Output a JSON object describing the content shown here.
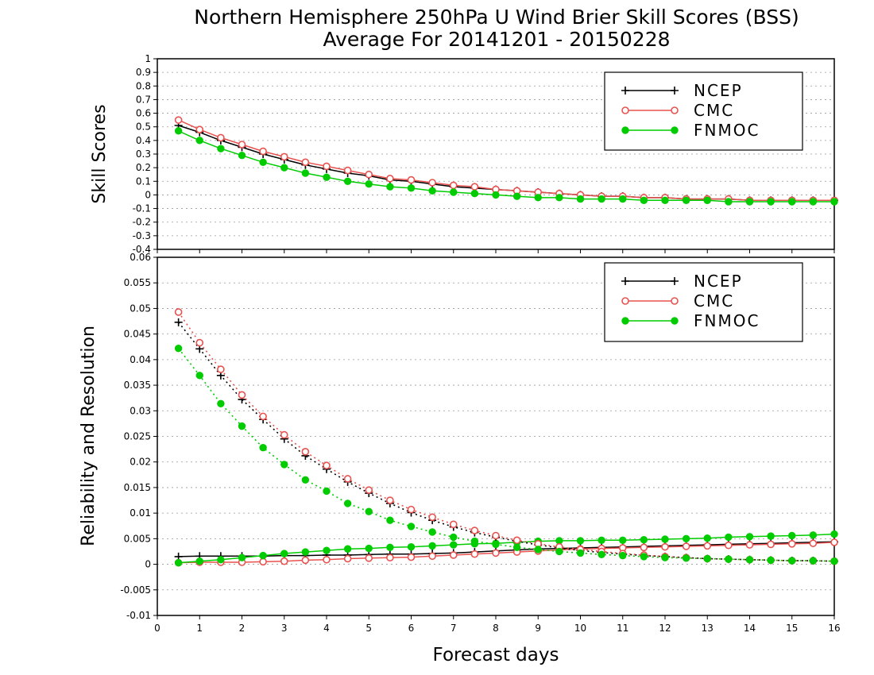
{
  "title_line1": "Northern Hemisphere 250hPa U Wind Brier Skill Scores (BSS)",
  "title_line2": "Average For 20141201 - 20150228",
  "xlabel": "Forecast days",
  "colors": {
    "NCEP": "#000000",
    "CMC": "#e8524f",
    "FNMOC": "#00cc00"
  },
  "legend": [
    "NCEP",
    "CMC",
    "FNMOC"
  ],
  "chart_data": [
    {
      "type": "line",
      "ylabel": "Skill Scores",
      "xlim": [
        0,
        16
      ],
      "ylim": [
        -0.4,
        1
      ],
      "x_ticks": [
        0,
        1,
        2,
        3,
        4,
        5,
        6,
        7,
        8,
        9,
        10,
        11,
        12,
        13,
        14,
        15,
        16
      ],
      "y_ticks": [
        -0.4,
        -0.3,
        -0.2,
        -0.1,
        0,
        0.1,
        0.2,
        0.3,
        0.4,
        0.5,
        0.6,
        0.7,
        0.8,
        0.9,
        1
      ],
      "y_tick_labels": [
        "-0.4",
        "-0.3",
        "-0.2",
        "-0.1",
        "0",
        "0.1",
        "0.2",
        "0.3",
        "0.4",
        "0.5",
        "0.6",
        "0.7",
        "0.8",
        "0.9",
        "1"
      ],
      "grid": "horizontal dotted",
      "legend_position": "top-right",
      "x": [
        0.5,
        1,
        1.5,
        2,
        2.5,
        3,
        3.5,
        4,
        4.5,
        5,
        5.5,
        6,
        6.5,
        7,
        7.5,
        8,
        8.5,
        9,
        9.5,
        10,
        10.5,
        11,
        11.5,
        12,
        12.5,
        13,
        13.5,
        14,
        14.5,
        15,
        15.5,
        16
      ],
      "series": [
        {
          "name": "NCEP",
          "style": "solid",
          "marker": "plus",
          "values": [
            0.51,
            0.46,
            0.4,
            0.35,
            0.3,
            0.26,
            0.22,
            0.19,
            0.16,
            0.14,
            0.11,
            0.1,
            0.08,
            0.06,
            0.05,
            0.04,
            0.03,
            0.02,
            0.01,
            0.0,
            -0.01,
            -0.01,
            -0.02,
            -0.02,
            -0.03,
            -0.03,
            -0.03,
            -0.04,
            -0.04,
            -0.04,
            -0.04,
            -0.04
          ]
        },
        {
          "name": "CMC",
          "style": "solid",
          "marker": "open-circle",
          "values": [
            0.55,
            0.48,
            0.42,
            0.37,
            0.32,
            0.28,
            0.24,
            0.21,
            0.18,
            0.15,
            0.12,
            0.11,
            0.09,
            0.07,
            0.06,
            0.04,
            0.03,
            0.02,
            0.01,
            0.0,
            -0.01,
            -0.01,
            -0.02,
            -0.02,
            -0.03,
            -0.03,
            -0.03,
            -0.04,
            -0.04,
            -0.04,
            -0.04,
            -0.04
          ]
        },
        {
          "name": "FNMOC",
          "style": "solid",
          "marker": "filled-circle",
          "values": [
            0.47,
            0.4,
            0.34,
            0.29,
            0.24,
            0.2,
            0.16,
            0.13,
            0.1,
            0.08,
            0.06,
            0.05,
            0.03,
            0.02,
            0.01,
            0.0,
            -0.01,
            -0.02,
            -0.02,
            -0.03,
            -0.03,
            -0.03,
            -0.04,
            -0.04,
            -0.04,
            -0.04,
            -0.05,
            -0.05,
            -0.05,
            -0.05,
            -0.05,
            -0.05
          ]
        }
      ]
    },
    {
      "type": "line",
      "ylabel": "Reliability and Resolution",
      "xlim": [
        0,
        16
      ],
      "ylim": [
        -0.01,
        0.06
      ],
      "x_ticks": [
        0,
        1,
        2,
        3,
        4,
        5,
        6,
        7,
        8,
        9,
        10,
        11,
        12,
        13,
        14,
        15,
        16
      ],
      "y_ticks": [
        -0.01,
        -0.005,
        0,
        0.005,
        0.01,
        0.015,
        0.02,
        0.025,
        0.03,
        0.035,
        0.04,
        0.045,
        0.05,
        0.055,
        0.06
      ],
      "y_tick_labels": [
        "-0.01",
        "-0.005",
        "0",
        "0.005",
        "0.01",
        "0.015",
        "0.02",
        "0.025",
        "0.03",
        "0.035",
        "0.04",
        "0.045",
        "0.05",
        "0.055",
        "0.06"
      ],
      "grid": "horizontal dotted",
      "legend_position": "top-right",
      "x": [
        0.5,
        1,
        1.5,
        2,
        2.5,
        3,
        3.5,
        4,
        4.5,
        5,
        5.5,
        6,
        6.5,
        7,
        7.5,
        8,
        8.5,
        9,
        9.5,
        10,
        10.5,
        11,
        11.5,
        12,
        12.5,
        13,
        13.5,
        14,
        14.5,
        15,
        15.5,
        16
      ],
      "series": [
        {
          "name": "NCEP",
          "component": "reliability",
          "style": "solid",
          "marker": "plus",
          "values": [
            0.0015,
            0.0016,
            0.0016,
            0.0016,
            0.0016,
            0.0017,
            0.0017,
            0.0018,
            0.0018,
            0.0019,
            0.002,
            0.002,
            0.0021,
            0.0022,
            0.0024,
            0.0026,
            0.0028,
            0.003,
            0.0031,
            0.0032,
            0.0033,
            0.0034,
            0.0035,
            0.0036,
            0.0037,
            0.0038,
            0.0039,
            0.004,
            0.0041,
            0.0042,
            0.0043,
            0.0044
          ]
        },
        {
          "name": "CMC",
          "component": "reliability",
          "style": "solid",
          "marker": "open-circle",
          "values": [
            0.0003,
            0.0004,
            0.0004,
            0.0004,
            0.0005,
            0.0006,
            0.0008,
            0.0009,
            0.0011,
            0.0012,
            0.0013,
            0.0014,
            0.0016,
            0.0018,
            0.002,
            0.0022,
            0.0024,
            0.0026,
            0.0028,
            0.003,
            0.0031,
            0.0032,
            0.0033,
            0.0034,
            0.0035,
            0.0036,
            0.0037,
            0.0038,
            0.0039,
            0.004,
            0.0041,
            0.0043
          ]
        },
        {
          "name": "FNMOC",
          "component": "reliability",
          "style": "solid",
          "marker": "filled-circle",
          "values": [
            0.0003,
            0.0006,
            0.0009,
            0.0013,
            0.0017,
            0.0021,
            0.0024,
            0.0027,
            0.003,
            0.0031,
            0.0033,
            0.0034,
            0.0036,
            0.0038,
            0.004,
            0.0041,
            0.0043,
            0.0045,
            0.0046,
            0.0046,
            0.0047,
            0.0047,
            0.0048,
            0.0049,
            0.005,
            0.0051,
            0.0053,
            0.0054,
            0.0055,
            0.0056,
            0.0057,
            0.0059
          ]
        },
        {
          "name": "NCEP",
          "component": "resolution",
          "style": "dotted",
          "marker": "plus",
          "values": [
            0.0473,
            0.0421,
            0.0369,
            0.0322,
            0.0283,
            0.0245,
            0.0212,
            0.0186,
            0.0161,
            0.0139,
            0.0119,
            0.0101,
            0.0086,
            0.0073,
            0.0062,
            0.0053,
            0.0045,
            0.0038,
            0.0032,
            0.0027,
            0.0023,
            0.002,
            0.0017,
            0.0015,
            0.0013,
            0.0011,
            0.001,
            0.0009,
            0.0008,
            0.0007,
            0.0007,
            0.0006
          ]
        },
        {
          "name": "CMC",
          "component": "resolution",
          "style": "dotted",
          "marker": "open-circle",
          "values": [
            0.0493,
            0.0433,
            0.0381,
            0.0331,
            0.0289,
            0.0253,
            0.022,
            0.0193,
            0.0167,
            0.0145,
            0.0125,
            0.0107,
            0.0092,
            0.0078,
            0.0066,
            0.0056,
            0.0047,
            0.004,
            0.0034,
            0.0029,
            0.0025,
            0.0021,
            0.0018,
            0.0015,
            0.0013,
            0.0011,
            0.001,
            0.0009,
            0.0008,
            0.0007,
            0.0007,
            0.0006
          ]
        },
        {
          "name": "FNMOC",
          "component": "resolution",
          "style": "dotted",
          "marker": "filled-circle",
          "values": [
            0.0422,
            0.0369,
            0.0314,
            0.027,
            0.0228,
            0.0195,
            0.0165,
            0.0143,
            0.0119,
            0.0103,
            0.0086,
            0.0074,
            0.0063,
            0.0053,
            0.0045,
            0.0039,
            0.0033,
            0.0029,
            0.0025,
            0.0022,
            0.0019,
            0.0017,
            0.0015,
            0.0013,
            0.0012,
            0.0011,
            0.001,
            0.0009,
            0.0008,
            0.0007,
            0.0007,
            0.0006
          ]
        }
      ]
    }
  ]
}
